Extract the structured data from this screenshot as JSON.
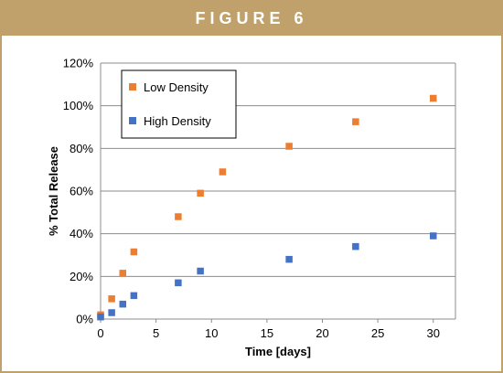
{
  "figure_title": "FIGURE 6",
  "colors": {
    "banner": "#c0a16b",
    "low_density": "#ed7d31",
    "high_density": "#4472c4",
    "grid": "#8c8c8c"
  },
  "chart_data": {
    "type": "scatter",
    "title": "",
    "xlabel": "Time [days]",
    "ylabel": "% Total Release",
    "xlim": [
      0,
      32
    ],
    "ylim": [
      0,
      120
    ],
    "x_ticks": [
      0,
      5,
      10,
      15,
      20,
      25,
      30
    ],
    "y_ticks": [
      0,
      20,
      40,
      60,
      80,
      100,
      120
    ],
    "y_tick_labels": [
      "0%",
      "20%",
      "40%",
      "60%",
      "80%",
      "100%",
      "120%"
    ],
    "grid": "horizontal",
    "legend_position": "top-left",
    "series": [
      {
        "name": "Low Density",
        "color": "#ed7d31",
        "x": [
          0,
          1,
          2,
          3,
          7,
          9,
          11,
          17,
          23,
          30
        ],
        "y": [
          2,
          9.5,
          21.5,
          31.5,
          48,
          59,
          69,
          81,
          92.5,
          103.5
        ]
      },
      {
        "name": "High Density",
        "color": "#4472c4",
        "x": [
          0,
          1,
          2,
          3,
          7,
          9,
          17,
          23,
          30
        ],
        "y": [
          1,
          3,
          7,
          11,
          17,
          22.5,
          28,
          34,
          39
        ]
      }
    ]
  }
}
